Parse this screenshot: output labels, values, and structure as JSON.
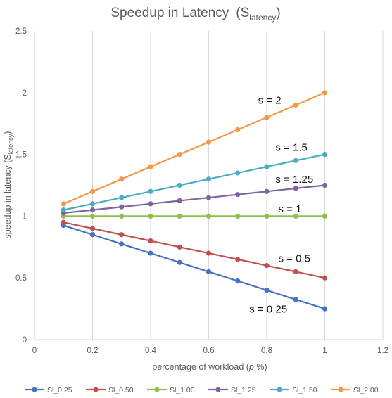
{
  "chart_data": {
    "type": "line",
    "title": "Speedup in Latency",
    "title_symbol": {
      "base": "(S",
      "sub": "latency",
      "close": ")"
    },
    "xlabel": "percentage of workload (",
    "xlabel_italic": "p",
    "xlabel_tail": " %)",
    "ylabel": "speedup in latency (S",
    "ylabel_sub": "latency",
    "ylabel_close": ")",
    "xlim": [
      0,
      1.2
    ],
    "ylim": [
      0,
      2.5
    ],
    "x_ticks": [
      "0",
      "0.2",
      "0.4",
      "0.6",
      "0.8",
      "1",
      "1.2"
    ],
    "x_tick_values": [
      0,
      0.2,
      0.4,
      0.6,
      0.8,
      1,
      1.2
    ],
    "y_ticks": [
      "0",
      "0.5",
      "1",
      "1.5",
      "2",
      "2.5"
    ],
    "y_tick_values": [
      0,
      0.5,
      1,
      1.5,
      2,
      2.5
    ],
    "grid": "vertical",
    "legend_position": "bottom",
    "x": [
      0.1,
      0.2,
      0.3,
      0.4,
      0.5,
      0.6,
      0.7,
      0.8,
      0.9,
      1.0
    ],
    "series": [
      {
        "name": "Sl_0.25",
        "color": "#4472c4",
        "values": [
          0.925,
          0.85,
          0.775,
          0.7,
          0.625,
          0.55,
          0.475,
          0.4,
          0.325,
          0.25
        ]
      },
      {
        "name": "Sl_0.50",
        "color": "#c0504d",
        "values": [
          0.95,
          0.9,
          0.85,
          0.8,
          0.75,
          0.7,
          0.65,
          0.6,
          0.55,
          0.5
        ]
      },
      {
        "name": "Sl_1.00",
        "color": "#8fc04f",
        "values": [
          1.0,
          1.0,
          1.0,
          1.0,
          1.0,
          1.0,
          1.0,
          1.0,
          1.0,
          1.0
        ]
      },
      {
        "name": "Sl_1.25",
        "color": "#8064a2",
        "values": [
          1.025,
          1.05,
          1.075,
          1.1,
          1.125,
          1.15,
          1.175,
          1.2,
          1.225,
          1.25
        ]
      },
      {
        "name": "Sl_1.50",
        "color": "#4bacc6",
        "values": [
          1.05,
          1.1,
          1.15,
          1.2,
          1.25,
          1.3,
          1.35,
          1.4,
          1.45,
          1.5
        ]
      },
      {
        "name": "Sl_2.00",
        "color": "#f79646",
        "values": [
          1.1,
          1.2,
          1.3,
          1.4,
          1.5,
          1.6,
          1.7,
          1.8,
          1.9,
          2.0
        ]
      }
    ],
    "annotations": [
      {
        "text": "s = 2",
        "x": 0.77,
        "y": 1.91
      },
      {
        "text": "s = 1.5",
        "x": 0.83,
        "y": 1.53
      },
      {
        "text": "s = 1.25",
        "x": 0.83,
        "y": 1.27
      },
      {
        "text": "s = 1",
        "x": 0.84,
        "y": 1.03
      },
      {
        "text": "s = 0.5",
        "x": 0.84,
        "y": 0.63
      },
      {
        "text": "s = 0.25",
        "x": 0.74,
        "y": 0.22
      }
    ]
  }
}
